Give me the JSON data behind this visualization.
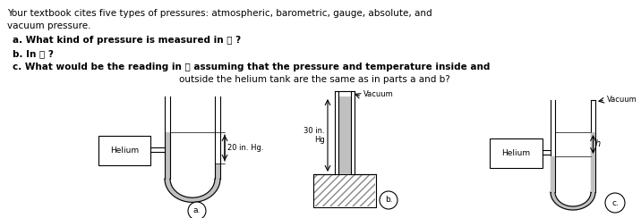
{
  "bg_color": "#ffffff",
  "text_color": "#000000",
  "line1": "Your textbook cites five types of pressures: atmospheric, barometric, gauge, absolute, and",
  "line2": "vacuum pressure.",
  "qa_a": "a. What kind of pressure is measured in ⓐ ?",
  "qa_b": "b. In ⓑ ?",
  "qa_c1": "c. What would be the reading in ⓒ assuming that the pressure and temperature inside and",
  "qa_c2": "outside the helium tank are the same as in parts a and b?",
  "label_a": "ⓐ",
  "label_b": "ⓑ",
  "label_c": "ⓒ",
  "helium": "Helium",
  "vacuum": "Vacuum",
  "meas_a": "20 in. Hg.",
  "meas_b_top": "30 in.",
  "meas_b_bot": "Hg",
  "h_label": "h",
  "lw": 0.8
}
